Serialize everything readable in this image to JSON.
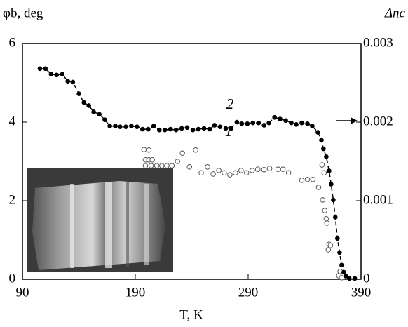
{
  "chart_data": {
    "type": "scatter",
    "x_label": "T, K",
    "y_label": "φb, deg",
    "y2_label": "Δnc",
    "annotations": [
      "2",
      "1"
    ],
    "xlim": [
      90,
      390
    ],
    "xticks": [
      90,
      190,
      290,
      390
    ],
    "ylim": [
      0,
      6
    ],
    "yticks": [
      0,
      2,
      4,
      6
    ],
    "y2lim": [
      0,
      0.003
    ],
    "y2ticks": [
      0,
      0.001,
      0.002,
      0.003
    ],
    "series": [
      {
        "name": "1",
        "color": "#555555",
        "marker": "open",
        "x": [
          197.7,
          202,
          199,
          202,
          205,
          199,
          204,
          209,
          213.5,
          218,
          222.5,
          227.4,
          231.7,
          238,
          243.5,
          248.4,
          254,
          259,
          264,
          268.8,
          273.8,
          278.7,
          283.7,
          288.6,
          293.6,
          298.5,
          304,
          309,
          316.5,
          320.8,
          325.8,
          337.5,
          342.5,
          347.4,
          352.4,
          355.5,
          357.3,
          356,
          357.9,
          359.2,
          359.8,
          361.7,
          362.9,
          361,
          370.3,
          371.5,
          372.8
        ],
        "values": [
          3.3,
          3.29,
          3.04,
          3.04,
          3.04,
          2.89,
          2.89,
          2.89,
          2.89,
          2.89,
          2.89,
          3.0,
          3.21,
          2.86,
          3.29,
          2.71,
          2.86,
          2.68,
          2.77,
          2.71,
          2.66,
          2.71,
          2.77,
          2.71,
          2.77,
          2.8,
          2.79,
          2.82,
          2.8,
          2.8,
          2.71,
          2.52,
          2.54,
          2.54,
          2.34,
          2.91,
          2.71,
          2.02,
          1.75,
          1.54,
          1.43,
          0.89,
          0.86,
          0.75,
          0.09,
          0.2,
          0.04
        ]
      },
      {
        "name": "2",
        "color": "#000000",
        "marker": "filled",
        "axis": "y2",
        "x": [
          105.5,
          110.4,
          115.4,
          120.3,
          125.3,
          130.2,
          134.6,
          140.1,
          144.5,
          148.8,
          153.1,
          158.1,
          163,
          167.4,
          172.3,
          176.6,
          181.6,
          186.5,
          191.5,
          196.4,
          201.4,
          206.3,
          211.3,
          216.2,
          221.2,
          226.1,
          231.1,
          236,
          241,
          245.9,
          250.9,
          255.8,
          260.2,
          265.1,
          270.1,
          275,
          280,
          284.3,
          289.3,
          294.2,
          299.2,
          304.1,
          308.4,
          313.4,
          318.3,
          323.3,
          328.2,
          332.6,
          337.5,
          342.5,
          346.8,
          351.8,
          354.9,
          356.7,
          359.2,
          361.7,
          363.5,
          365.4,
          367.2,
          369.1,
          371,
          372.8,
          374.7,
          376.5,
          379.6,
          384.5
        ],
        "values": [
          0.00268,
          0.00268,
          0.00261,
          0.0026,
          0.00261,
          0.00252,
          0.00251,
          0.00236,
          0.00225,
          0.00221,
          0.00213,
          0.0021,
          0.00203,
          0.00195,
          0.00195,
          0.00194,
          0.00194,
          0.00195,
          0.00194,
          0.00191,
          0.00191,
          0.00195,
          0.0019,
          0.0019,
          0.00191,
          0.0019,
          0.00192,
          0.00193,
          0.0019,
          0.00191,
          0.00192,
          0.00191,
          0.00196,
          0.00194,
          0.00192,
          0.00192,
          0.002,
          0.00198,
          0.00198,
          0.00199,
          0.00199,
          0.00196,
          0.00199,
          0.00206,
          0.00204,
          0.00202,
          0.00199,
          0.00197,
          0.00199,
          0.00198,
          0.00195,
          0.00187,
          0.00177,
          0.00166,
          0.00156,
          0.00138,
          0.00121,
          0.00101,
          0.00079,
          0.00052,
          0.00034,
          0.00018,
          9e-05,
          4e-05,
          1e-05,
          1e-05
        ]
      }
    ]
  }
}
